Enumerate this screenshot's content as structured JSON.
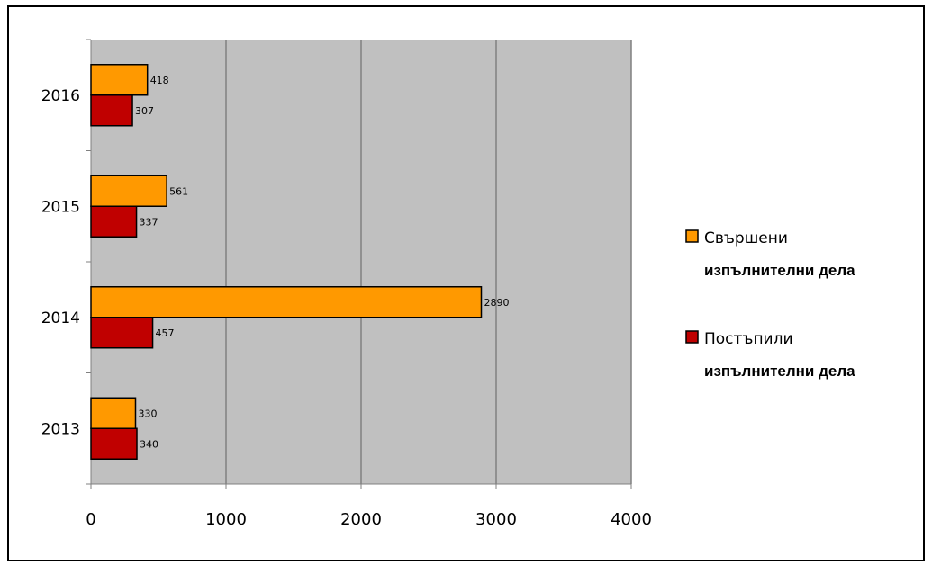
{
  "chart_data": {
    "type": "bar",
    "orientation": "horizontal",
    "categories": [
      "2013",
      "2014",
      "2015",
      "2016"
    ],
    "series": [
      {
        "name": "Постъпили",
        "name_bold": "изпълнителни дела",
        "values": [
          340,
          457,
          337,
          307
        ],
        "color": "#c00000"
      },
      {
        "name": "Свършени",
        "name_bold": "изпълнителни дела",
        "values": [
          330,
          2890,
          561,
          418
        ],
        "color": "#ff9900"
      }
    ],
    "x_ticks": [
      "0",
      "1000",
      "2000",
      "3000",
      "4000"
    ],
    "xlim": [
      0,
      4000
    ],
    "grid": true,
    "plot_background": "#c0c0c0",
    "legend_position": "right"
  }
}
